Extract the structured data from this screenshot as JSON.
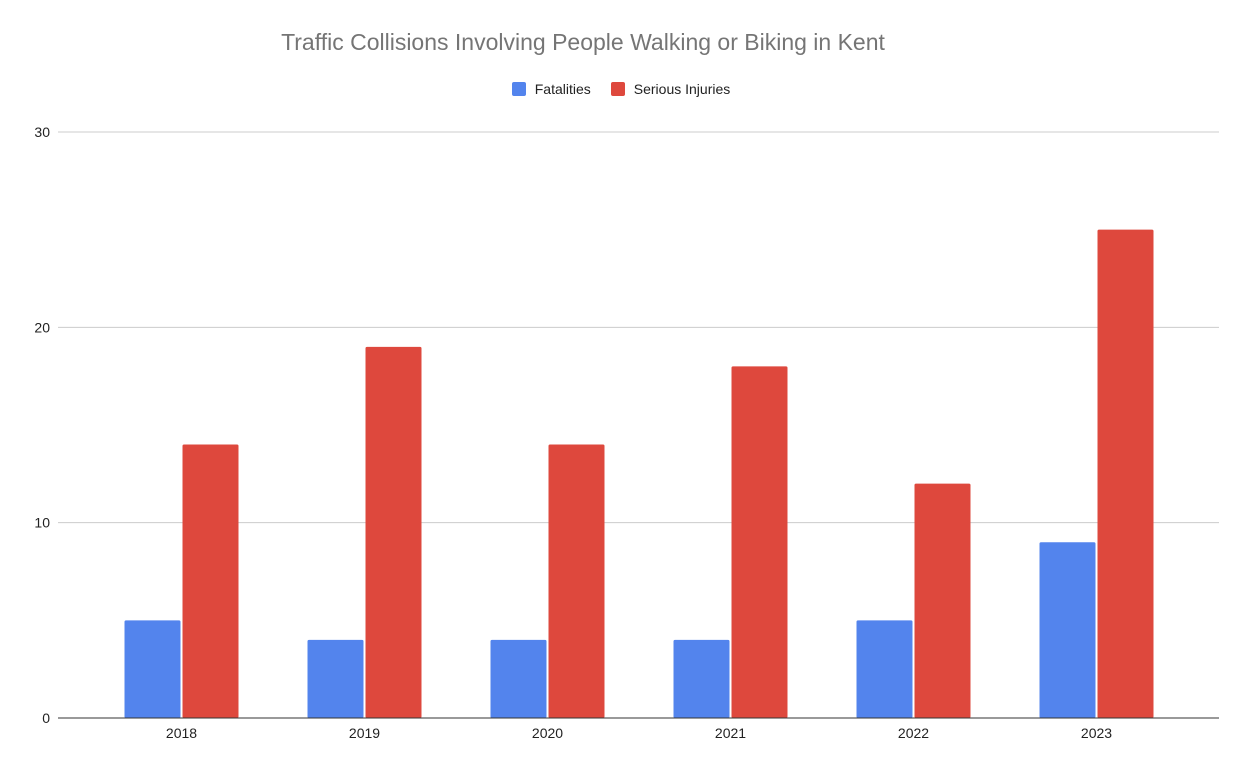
{
  "chart_data": {
    "type": "bar",
    "title": "Traffic Collisions Involving People Walking or Biking in Kent",
    "categories": [
      "2018",
      "2019",
      "2020",
      "2021",
      "2022",
      "2023"
    ],
    "series": [
      {
        "name": "Fatalities",
        "color": "#5384ED",
        "values": [
          5,
          4,
          4,
          4,
          5,
          9
        ]
      },
      {
        "name": "Serious Injuries",
        "color": "#DE483D",
        "values": [
          14,
          19,
          14,
          18,
          12,
          25
        ]
      }
    ],
    "y_ticks": [
      "0",
      "10",
      "20",
      "30"
    ],
    "ylim": [
      0,
      30
    ],
    "xlabel": "",
    "ylabel": "",
    "legend_position": "top",
    "grid": true
  }
}
